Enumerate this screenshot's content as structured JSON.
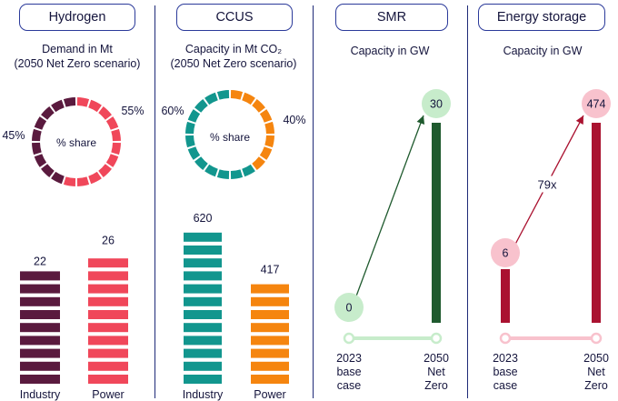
{
  "panels": {
    "hydrogen": {
      "title": "Hydrogen",
      "subtitle_line1": "Demand in Mt",
      "subtitle_line2": "(2050 Net Zero scenario)",
      "donut_center": "% share",
      "left_pct": "45%",
      "right_pct": "55%"
    },
    "ccus": {
      "title": "CCUS",
      "subtitle_line1": "Capacity in Mt CO₂",
      "subtitle_line2": "(2050 Net Zero scenario)",
      "donut_center": "% share",
      "left_pct": "60%",
      "right_pct": "40%"
    },
    "smr": {
      "title": "SMR",
      "subtitle_line1": "Capacity in GW"
    },
    "storage": {
      "title": "Energy storage",
      "subtitle_line1": "Capacity in GW",
      "annotation": "79x"
    }
  },
  "colors": {
    "hydrogen_industry": "#5a1a3e",
    "hydrogen_power": "#f0475a",
    "ccus_industry": "#12968e",
    "ccus_power": "#f5850f",
    "smr_bar": "#1f5a2e",
    "smr_circle": "#c7eccb",
    "smr_track": "#c7eccb",
    "storage_bar": "#aa1230",
    "storage_circle": "#f8c2cd",
    "storage_track": "#f8c2cd",
    "divider": "#1e2a78"
  },
  "chart_data": [
    {
      "type": "bar",
      "panel": "hydrogen",
      "categories": [
        "Industry",
        "Power"
      ],
      "values": [
        22,
        26
      ],
      "share": [
        "45%",
        "55%"
      ],
      "ylim": [
        0,
        30
      ]
    },
    {
      "type": "bar",
      "panel": "ccus",
      "categories": [
        "Industry",
        "Power"
      ],
      "values": [
        620,
        417
      ],
      "share": [
        "60%",
        "40%"
      ],
      "ylim": [
        0,
        700
      ]
    },
    {
      "type": "bar",
      "panel": "smr",
      "categories": [
        "2023 base case",
        "2050 Net Zero"
      ],
      "category_lines": [
        [
          "2023",
          "base",
          "case"
        ],
        [
          "2050",
          "Net",
          "Zero"
        ]
      ],
      "values": [
        0,
        30
      ],
      "ylim": [
        0,
        30
      ]
    },
    {
      "type": "bar",
      "panel": "storage",
      "categories": [
        "2023 base case",
        "2050 Net Zero"
      ],
      "category_lines": [
        [
          "2023",
          "base",
          "case"
        ],
        [
          "2050",
          "Net",
          "Zero"
        ]
      ],
      "values": [
        6,
        474
      ],
      "ylim": [
        0,
        474
      ],
      "annotation": "79x"
    }
  ]
}
